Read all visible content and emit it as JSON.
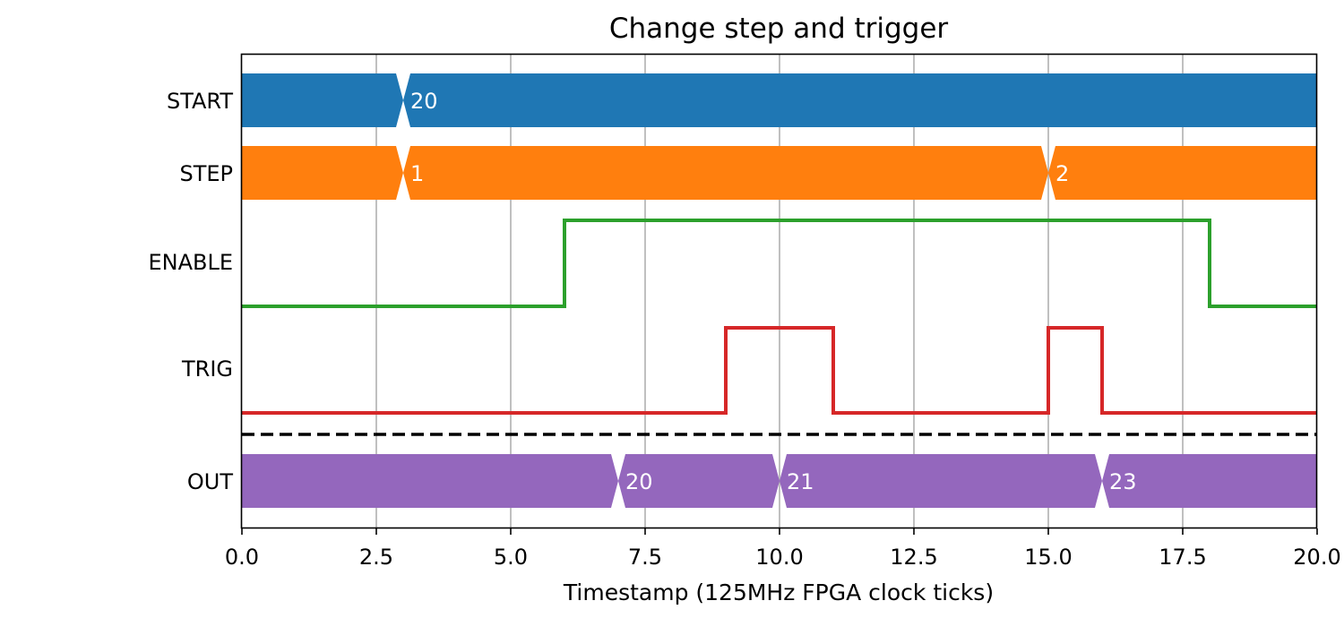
{
  "chart_data": {
    "type": "timing-diagram",
    "title": "Change step and trigger",
    "xlabel": "Timestamp (125MHz FPGA clock ticks)",
    "xlim": [
      0,
      20
    ],
    "xticks": [
      0,
      2.5,
      5,
      7.5,
      10,
      12.5,
      15,
      17.5,
      20
    ],
    "xtick_labels": [
      "0.0",
      "2.5",
      "5.0",
      "7.5",
      "10.0",
      "12.5",
      "15.0",
      "17.5",
      "20.0"
    ],
    "grid": "vertical",
    "separator_after": "TRIG",
    "signals": [
      {
        "name": "START",
        "kind": "bus",
        "color": "#1f77b4",
        "segments": [
          {
            "start": 0,
            "end": 3,
            "label": ""
          },
          {
            "start": 3,
            "end": 20,
            "label": "20"
          }
        ]
      },
      {
        "name": "STEP",
        "kind": "bus",
        "color": "#ff7f0e",
        "segments": [
          {
            "start": 0,
            "end": 3,
            "label": ""
          },
          {
            "start": 3,
            "end": 15,
            "label": "1"
          },
          {
            "start": 15,
            "end": 20,
            "label": "2"
          }
        ]
      },
      {
        "name": "ENABLE",
        "kind": "bit",
        "color": "#2ca02c",
        "steps": [
          [
            0,
            0
          ],
          [
            6,
            1
          ],
          [
            18,
            0
          ],
          [
            20,
            0
          ]
        ]
      },
      {
        "name": "TRIG",
        "kind": "bit",
        "color": "#d62728",
        "steps": [
          [
            0,
            0
          ],
          [
            9,
            1
          ],
          [
            11,
            0
          ],
          [
            15,
            1
          ],
          [
            16,
            0
          ],
          [
            20,
            0
          ]
        ]
      },
      {
        "name": "OUT",
        "kind": "bus",
        "color": "#9467bd",
        "segments": [
          {
            "start": 0,
            "end": 7,
            "label": ""
          },
          {
            "start": 7,
            "end": 10,
            "label": "20"
          },
          {
            "start": 10,
            "end": 16,
            "label": "21"
          },
          {
            "start": 16,
            "end": 20,
            "label": "23"
          }
        ]
      }
    ]
  }
}
